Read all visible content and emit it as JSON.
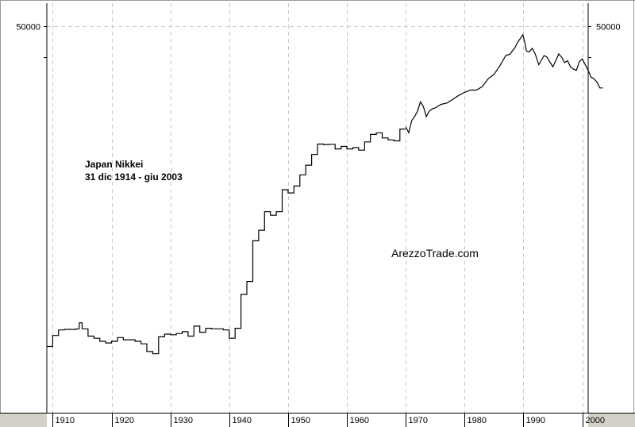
{
  "chart_data": {
    "type": "line",
    "title": "Japan Nikkei",
    "subtitle": "31 dic 1914 - giu 2003",
    "watermark": "ArezzoTrade.com",
    "y_scale": "log",
    "ylim": [
      0.5,
      100000
    ],
    "xlim": [
      1909,
      2001
    ],
    "grid": true,
    "y_tick_label": "50000",
    "y_ticks_unlabeled": [
      20000
    ],
    "x_tick_labels": [
      "1910",
      "1920",
      "1930",
      "1940",
      "1950",
      "1960",
      "1970",
      "1980",
      "1990",
      "2000"
    ],
    "series": [
      {
        "style": "step",
        "x": [
          1909,
          1910,
          1911,
          1912,
          1914,
          1914.5,
          1915,
          1916,
          1917,
          1918,
          1919,
          1920,
          1921,
          1922,
          1923,
          1924,
          1925,
          1926,
          1927,
          1928,
          1929,
          1930,
          1931,
          1932,
          1933,
          1934,
          1935,
          1936,
          1937,
          1938,
          1939,
          1940,
          1941,
          1942,
          1943,
          1944,
          1945,
          1946,
          1947,
          1948,
          1949,
          1950,
          1951,
          1952,
          1953,
          1954,
          1955,
          1956,
          1957,
          1958,
          1959,
          1960,
          1961,
          1962,
          1963,
          1964,
          1965,
          1966,
          1967,
          1968,
          1969
        ],
        "y": [
          3.6,
          5.0,
          5.9,
          6.0,
          6.1,
          7.3,
          6.1,
          4.9,
          4.6,
          4.2,
          4.0,
          4.2,
          4.7,
          4.4,
          4.4,
          4.2,
          3.9,
          3.1,
          2.9,
          4.8,
          5.2,
          5.1,
          5.3,
          5.6,
          4.9,
          6.6,
          5.5,
          6.2,
          6.1,
          6.1,
          5.9,
          4.6,
          6.2,
          17,
          25,
          84,
          115,
          200,
          180,
          200,
          385,
          350,
          430,
          600,
          800,
          1100,
          1500,
          1480,
          1490,
          1300,
          1400,
          1300,
          1350,
          1250,
          1600,
          2000,
          2100,
          1800,
          1700,
          1650,
          2350
        ]
      },
      {
        "style": "line",
        "x": [
          1970,
          1970.5,
          1971,
          1971.5,
          1972,
          1972.5,
          1973,
          1973.5,
          1974,
          1974.5,
          1975,
          1976,
          1977,
          1978,
          1979,
          1980,
          1981,
          1982,
          1983,
          1984,
          1985,
          1986,
          1987,
          1987.8,
          1988,
          1988.5,
          1989,
          1989.9,
          1990.2,
          1990.5,
          1991,
          1991.5,
          1992,
          1992.6,
          1993,
          1993.5,
          1994,
          1995,
          1995.5,
          1996,
          1996.5,
          1997,
          1997.5,
          1998,
          1998.5,
          1999,
          1999.5,
          2000,
          2000.5,
          2001,
          2001.5,
          2002,
          2002.5,
          2003,
          2003.5
        ],
        "y": [
          2500,
          2100,
          3000,
          3400,
          4000,
          5300,
          4600,
          3400,
          4000,
          4300,
          4400,
          4900,
          5100,
          5700,
          6400,
          7000,
          7500,
          7500,
          8300,
          10500,
          12000,
          15500,
          21000,
          22000,
          23500,
          26000,
          31000,
          38900,
          32000,
          24000,
          23500,
          26000,
          22000,
          16000,
          18000,
          21000,
          20000,
          15000,
          18000,
          22000,
          20000,
          17000,
          18000,
          15000,
          14000,
          13500,
          17500,
          19000,
          16000,
          13500,
          11000,
          10500,
          9500,
          8000,
          8000
        ]
      }
    ]
  }
}
